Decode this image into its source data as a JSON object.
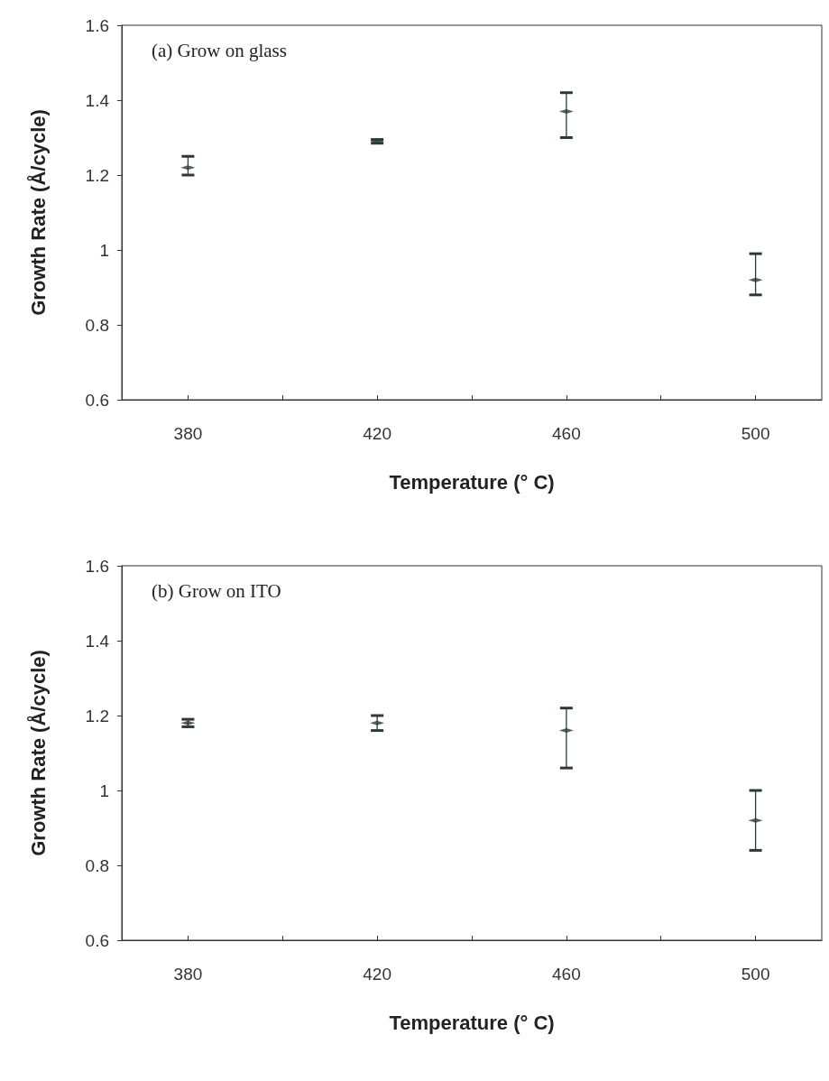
{
  "chart_data": [
    {
      "type": "scatter",
      "title": "(a) Grow on glass",
      "xlabel": "Temperature (° C)",
      "ylabel": "Growth Rate (Å/cycle)",
      "x": [
        380,
        420,
        460,
        500
      ],
      "series": [
        {
          "color": "#2b3a35",
          "values": [
            1.22,
            1.29,
            1.37,
            0.92
          ],
          "errors": [
            [
              1.2,
              1.25
            ],
            [
              1.285,
              1.295
            ],
            [
              1.3,
              1.42
            ],
            [
              0.88,
              0.99
            ]
          ]
        }
      ],
      "xlim": [
        366,
        514
      ],
      "xticks": [
        380,
        {
          "value": 400,
          "label": null
        },
        420,
        {
          "value": 440,
          "label": null
        },
        460,
        {
          "value": 480,
          "label": null
        },
        500
      ],
      "ylim": [
        0.6,
        1.6
      ],
      "yticks": [
        0.6,
        0.8,
        1,
        1.2,
        1.4,
        1.6
      ],
      "grid": false,
      "marker": "diamond"
    },
    {
      "type": "scatter",
      "title": "(b) Grow on ITO",
      "xlabel": "Temperature (° C)",
      "ylabel": "Growth Rate (Å/cycle)",
      "x": [
        380,
        420,
        460,
        500
      ],
      "series": [
        {
          "color": "#2b3a35",
          "values": [
            1.18,
            1.18,
            1.16,
            0.92
          ],
          "errors": [
            [
              1.17,
              1.19
            ],
            [
              1.16,
              1.2
            ],
            [
              1.06,
              1.22
            ],
            [
              0.84,
              1.0
            ]
          ]
        }
      ],
      "xlim": [
        366,
        514
      ],
      "xticks": [
        380,
        {
          "value": 400,
          "label": null
        },
        420,
        {
          "value": 440,
          "label": null
        },
        460,
        {
          "value": 480,
          "label": null
        },
        500
      ],
      "ylim": [
        0.6,
        1.6
      ],
      "yticks": [
        0.6,
        0.8,
        1,
        1.2,
        1.4,
        1.6
      ],
      "grid": false,
      "marker": "diamond"
    }
  ]
}
